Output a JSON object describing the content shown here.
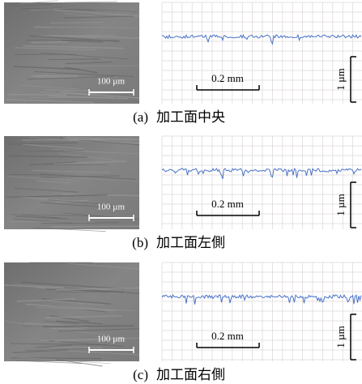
{
  "figures": [
    {
      "sem_scale": "100 µm",
      "profile_x_scale": "0.2 mm",
      "profile_y_scale": "1 µm",
      "caption_label": "(a)",
      "caption_text": "加工面中央"
    },
    {
      "sem_scale": "100 µm",
      "profile_x_scale": "0.2 mm",
      "profile_y_scale": "1 µm",
      "caption_label": "(b)",
      "caption_text": "加工面左側"
    },
    {
      "sem_scale": "100 µm",
      "profile_x_scale": "0.2 mm",
      "profile_y_scale": "1 µm",
      "caption_label": "(c)",
      "caption_text": "加工面右側"
    }
  ]
}
